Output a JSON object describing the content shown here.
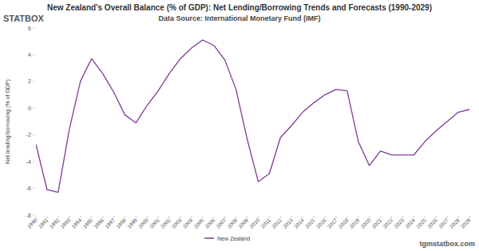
{
  "chart_data": {
    "type": "line",
    "title": "New Zealand's Overall Balance (% of GDP): Net Lending/Borrowing Trends and Forecasts (1990-2029)",
    "subtitle": "Data Source: International Monetary Fund (IMF)",
    "y_label": "Net lending/borrowing (% of GDP)",
    "logo": "STATBOX",
    "watermark": "tgmstatbox.com",
    "categories": [
      "1990",
      "1991",
      "1992",
      "1993",
      "1994",
      "1995",
      "1996",
      "1997",
      "1998",
      "1999",
      "2000",
      "2001",
      "2002",
      "2003",
      "2004",
      "2005",
      "2006",
      "2007",
      "2008",
      "2009",
      "2010",
      "2011",
      "2012",
      "2013",
      "2014",
      "2015",
      "2016",
      "2017",
      "2018",
      "2019",
      "2020",
      "2021",
      "2022",
      "2023",
      "2024",
      "2025",
      "2026",
      "2027",
      "2028",
      "2029"
    ],
    "series": [
      {
        "name": "New Zealand",
        "color": "#7d3c98",
        "values": [
          -2.7,
          -6.1,
          -6.3,
          -1.6,
          2.0,
          3.7,
          2.6,
          1.2,
          -0.5,
          -1.1,
          0.2,
          1.3,
          2.6,
          3.7,
          4.5,
          5.1,
          4.7,
          3.6,
          1.4,
          -2.3,
          -5.5,
          -4.9,
          -2.2,
          -1.3,
          -0.3,
          0.4,
          1.0,
          1.4,
          1.3,
          -2.5,
          -4.3,
          -3.2,
          -3.5,
          -3.5,
          -3.5,
          -2.5,
          -1.7,
          -1.0,
          -0.3,
          -0.1
        ]
      }
    ],
    "ylim": [
      -8,
      6
    ],
    "yticks": [
      -8,
      -6,
      -4,
      -2,
      0,
      2,
      4,
      6
    ],
    "grid": false,
    "legend": "bottom"
  }
}
